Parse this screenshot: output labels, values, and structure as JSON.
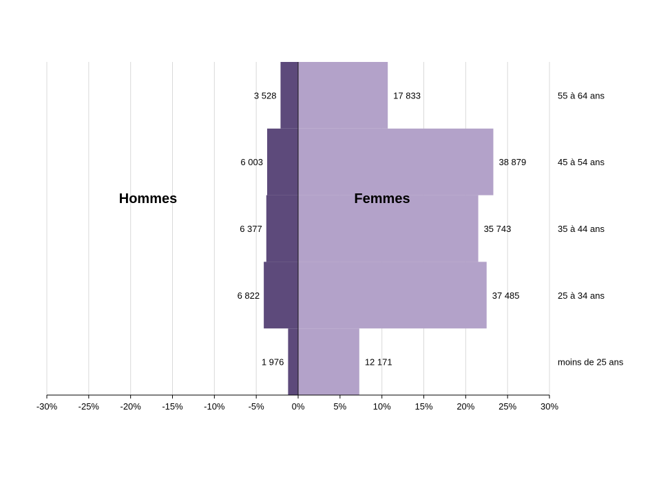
{
  "chart_data": {
    "type": "bar",
    "orientation": "horizontal-diverging",
    "categories": [
      "55 à 64 ans",
      "45 à 54 ans",
      "35 à 44 ans",
      "25 à 34 ans",
      "moins de 25 ans"
    ],
    "series": [
      {
        "name": "Hommes",
        "color": "#5d4a7b",
        "percent": [
          -2.1,
          -3.7,
          -3.8,
          -4.1,
          -1.2
        ],
        "labels": [
          "3 528",
          "6 003",
          "6 377",
          "6 822",
          "1 976"
        ]
      },
      {
        "name": "Femmes",
        "color": "#b3a2c9",
        "percent": [
          10.7,
          23.3,
          21.5,
          22.5,
          7.3
        ],
        "labels": [
          "17 833",
          "38 879",
          "35 743",
          "37 485",
          "12 171"
        ]
      }
    ],
    "xlim": [
      -30,
      30
    ],
    "xticks": [
      "-30%",
      "-25%",
      "-20%",
      "-15%",
      "-10%",
      "-5%",
      "0%",
      "5%",
      "10%",
      "15%",
      "20%",
      "25%",
      "30%"
    ],
    "grid": true,
    "group_labels": {
      "left": "Hommes",
      "right": "Femmes"
    }
  }
}
